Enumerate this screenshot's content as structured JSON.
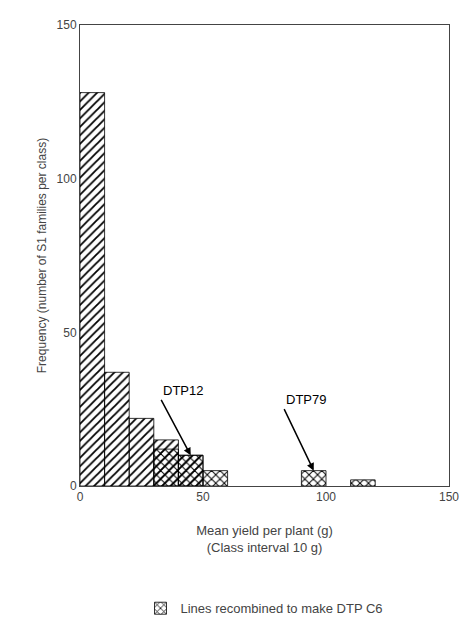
{
  "chart_data": {
    "type": "bar",
    "xlabel": "Mean yield per plant (g)\n(Class interval 10 g)",
    "ylabel": "Frequency (number of S1 families per class)",
    "xlim": [
      0,
      150
    ],
    "ylim": [
      0,
      150
    ],
    "xticks": [
      0,
      50,
      100,
      150
    ],
    "yticks": [
      0,
      50,
      100,
      150
    ],
    "bin_width": 10,
    "grid": false,
    "legend": "bottom",
    "series": [
      {
        "color": "white",
        "x": [
          0,
          10,
          20,
          30,
          40
        ],
        "values": [
          128,
          37,
          22,
          15,
          10
        ]
      },
      {
        "name": "Lines recombined to make DTP C6",
        "color": "white",
        "x": [
          30,
          40,
          50,
          90,
          110
        ],
        "values": [
          12,
          10,
          5,
          5,
          2
        ]
      }
    ],
    "annotations": [
      {
        "text": "DTP12",
        "x": 45,
        "y": 10,
        "text_x": 33,
        "text_y": 28
      },
      {
        "text": "DTP79",
        "x": 95,
        "y": 5,
        "text_x": 83,
        "text_y": 25
      }
    ]
  }
}
